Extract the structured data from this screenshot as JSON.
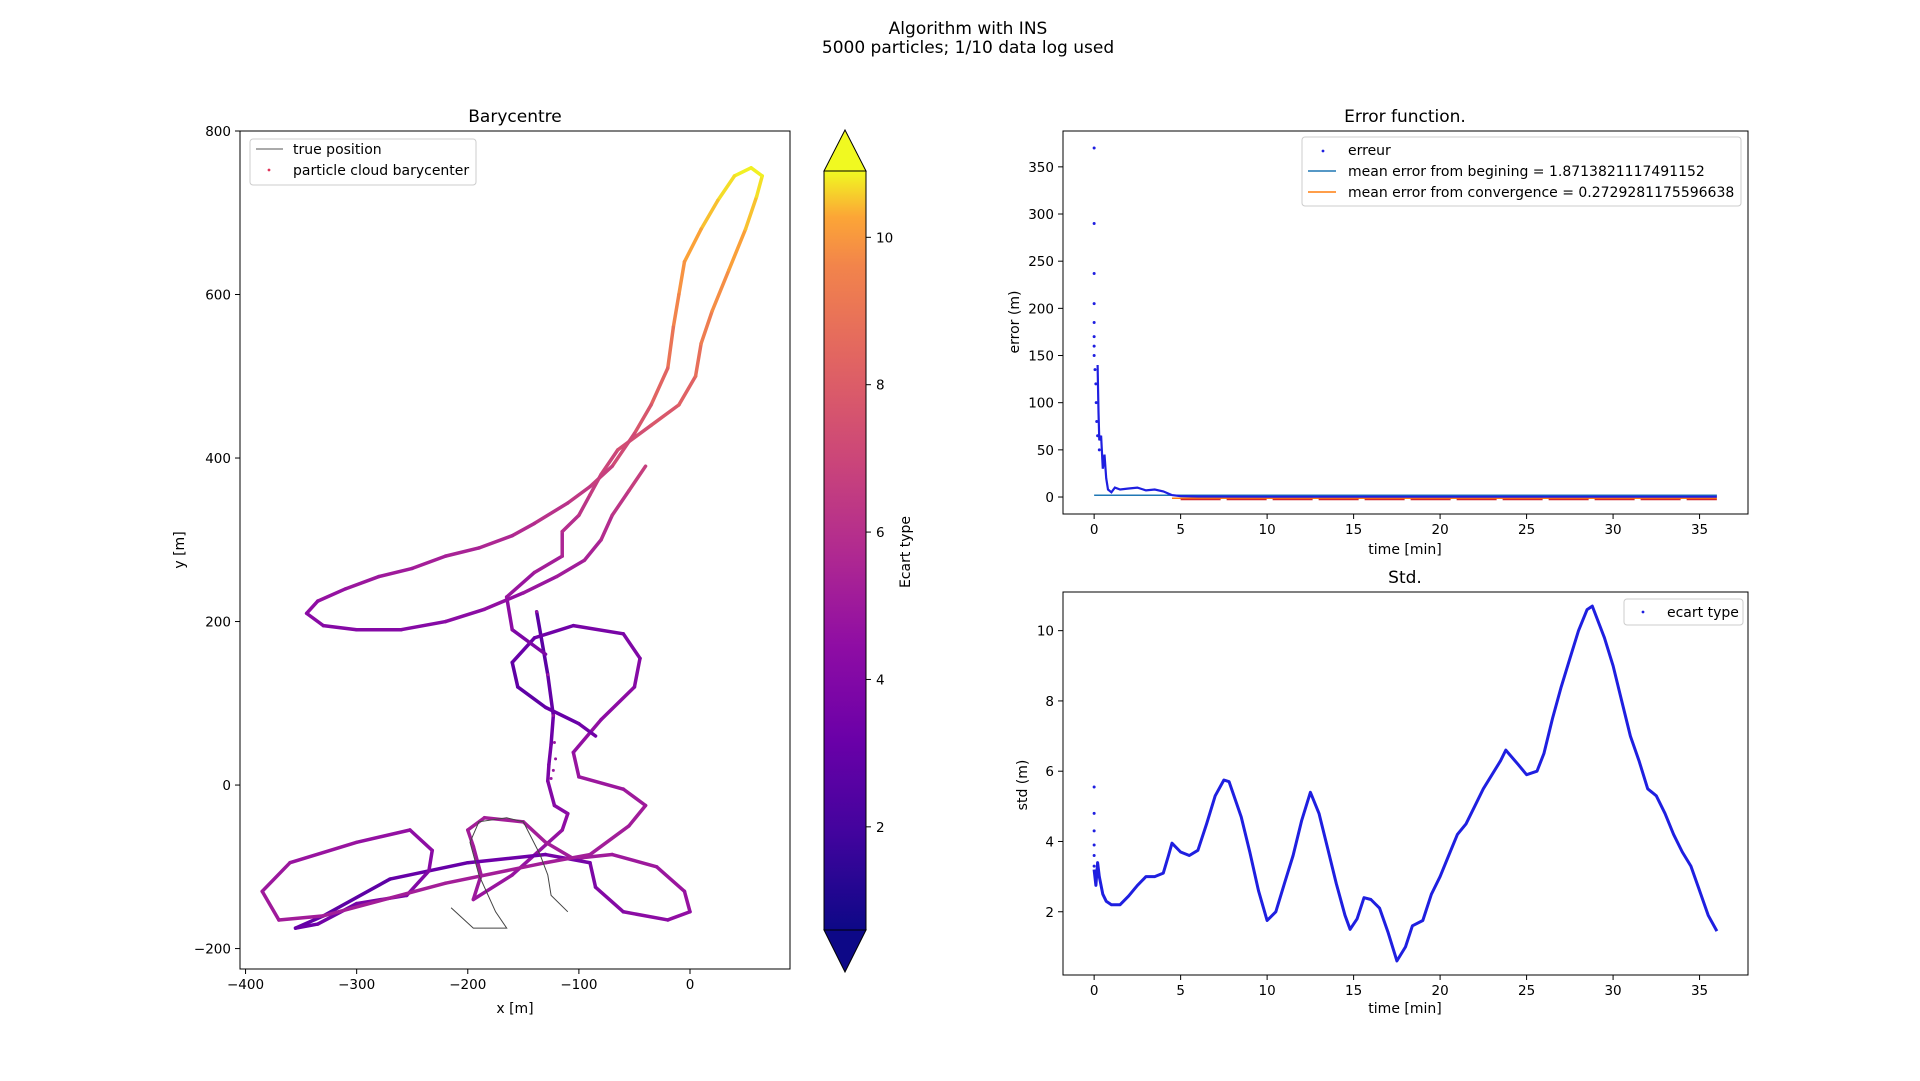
{
  "figure": {
    "suptitle_line1": "Algorithm with INS",
    "suptitle_line2": "5000 particles; 1/10 data log used"
  },
  "chart_data": [
    {
      "id": "barycentre",
      "type": "line",
      "title": "Barycentre",
      "xlabel": "x [m]",
      "ylabel": "y [m]",
      "xlim": [
        -405,
        90
      ],
      "ylim": [
        -225,
        800
      ],
      "xticks": [
        -400,
        -300,
        -200,
        -100,
        0
      ],
      "xtick_labels": [
        "−400",
        "−300",
        "−200",
        "−100",
        "0"
      ],
      "yticks": [
        -200,
        0,
        200,
        400,
        600,
        800
      ],
      "ytick_labels": [
        "−200",
        "0",
        "200",
        "400",
        "600",
        "800"
      ],
      "grid": false,
      "legend_position": "upper-left",
      "legend": [
        {
          "label": "true position",
          "marker": "line",
          "color": "#555555"
        },
        {
          "label": "particle cloud barycenter",
          "marker": "dot",
          "color": "#e0345a"
        }
      ],
      "colorbar": {
        "label": "Ecart type",
        "colormap": "plasma",
        "range": [
          0.6,
          10.9
        ],
        "ticks": [
          2,
          4,
          6,
          8,
          10
        ],
        "extend": "both"
      },
      "true_position": [
        [
          -110,
          -155
        ],
        [
          -125,
          -135
        ],
        [
          -128,
          -110
        ],
        [
          -135,
          -85
        ],
        [
          -150,
          -45
        ],
        [
          -165,
          -40
        ],
        [
          -190,
          -45
        ],
        [
          -198,
          -70
        ],
        [
          -190,
          -110
        ],
        [
          -175,
          -155
        ],
        [
          -165,
          -175
        ],
        [
          -195,
          -175
        ],
        [
          -215,
          -150
        ]
      ],
      "barycenter_path": [
        [
          -138,
          212
        ],
        [
          -128,
          135
        ],
        [
          -123,
          85
        ],
        [
          -125,
          50
        ],
        [
          -127,
          25
        ],
        [
          -128,
          5
        ],
        [
          -122,
          -25
        ],
        [
          -110,
          -35
        ],
        [
          -115,
          -55
        ],
        [
          -160,
          -110
        ],
        [
          -195,
          -140
        ],
        [
          -188,
          -110
        ],
        [
          -195,
          -75
        ],
        [
          -200,
          -55
        ],
        [
          -185,
          -40
        ],
        [
          -150,
          -45
        ],
        [
          -130,
          -70
        ],
        [
          -105,
          -90
        ],
        [
          -70,
          -85
        ],
        [
          -30,
          -100
        ],
        [
          -5,
          -130
        ],
        [
          0,
          -155
        ],
        [
          -20,
          -165
        ],
        [
          -60,
          -155
        ],
        [
          -85,
          -125
        ],
        [
          -90,
          -95
        ],
        [
          -130,
          -85
        ],
        [
          -200,
          -95
        ],
        [
          -270,
          -115
        ],
        [
          -330,
          -160
        ],
        [
          -355,
          -175
        ],
        [
          -335,
          -170
        ],
        [
          -300,
          -145
        ],
        [
          -255,
          -135
        ],
        [
          -235,
          -105
        ],
        [
          -232,
          -80
        ],
        [
          -252,
          -55
        ],
        [
          -300,
          -70
        ],
        [
          -360,
          -95
        ],
        [
          -385,
          -130
        ],
        [
          -370,
          -165
        ],
        [
          -330,
          -160
        ],
        [
          -220,
          -120
        ],
        [
          -130,
          -95
        ],
        [
          -90,
          -85
        ],
        [
          -55,
          -50
        ],
        [
          -40,
          -25
        ],
        [
          -60,
          -5
        ],
        [
          -100,
          10
        ],
        [
          -105,
          40
        ],
        [
          -80,
          80
        ],
        [
          -50,
          120
        ],
        [
          -45,
          155
        ],
        [
          -60,
          185
        ],
        [
          -105,
          195
        ],
        [
          -140,
          180
        ],
        [
          -160,
          150
        ],
        [
          -155,
          120
        ],
        [
          -130,
          95
        ],
        [
          -100,
          75
        ],
        [
          -85,
          60
        ]
      ],
      "barycenter_path_2": [
        [
          -130,
          160
        ],
        [
          -160,
          190
        ],
        [
          -165,
          230
        ],
        [
          -140,
          260
        ],
        [
          -115,
          280
        ],
        [
          -115,
          310
        ],
        [
          -100,
          330
        ],
        [
          -90,
          355
        ],
        [
          -80,
          380
        ],
        [
          -65,
          410
        ],
        [
          -35,
          440
        ],
        [
          -10,
          465
        ],
        [
          5,
          500
        ],
        [
          10,
          540
        ],
        [
          20,
          580
        ],
        [
          35,
          630
        ],
        [
          50,
          680
        ],
        [
          60,
          720
        ],
        [
          65,
          745
        ],
        [
          55,
          755
        ],
        [
          40,
          745
        ],
        [
          25,
          715
        ],
        [
          10,
          680
        ],
        [
          -5,
          640
        ],
        [
          -10,
          600
        ],
        [
          -15,
          560
        ],
        [
          -20,
          510
        ],
        [
          -35,
          465
        ],
        [
          -50,
          430
        ],
        [
          -70,
          390
        ],
        [
          -90,
          365
        ],
        [
          -110,
          345
        ],
        [
          -140,
          320
        ],
        [
          -160,
          305
        ],
        [
          -190,
          290
        ],
        [
          -220,
          280
        ],
        [
          -250,
          265
        ],
        [
          -280,
          255
        ],
        [
          -310,
          240
        ],
        [
          -335,
          225
        ],
        [
          -345,
          210
        ],
        [
          -330,
          195
        ],
        [
          -300,
          190
        ],
        [
          -260,
          190
        ],
        [
          -220,
          200
        ],
        [
          -185,
          215
        ],
        [
          -150,
          235
        ],
        [
          -120,
          255
        ],
        [
          -95,
          275
        ],
        [
          -80,
          300
        ],
        [
          -70,
          330
        ],
        [
          -55,
          360
        ],
        [
          -40,
          390
        ]
      ],
      "scatter_points": [
        [
          -138,
          212
        ],
        [
          -128,
          135
        ],
        [
          -123,
          85
        ],
        [
          -122,
          52
        ],
        [
          -121,
          32
        ],
        [
          -123,
          18
        ],
        [
          -125,
          8
        ]
      ]
    },
    {
      "id": "error",
      "type": "scatter",
      "title": "Error function.",
      "xlabel": "time [min]",
      "ylabel": "error (m)",
      "xlim": [
        -1.8,
        37.8
      ],
      "ylim": [
        -18,
        388
      ],
      "xticks": [
        0,
        5,
        10,
        15,
        20,
        25,
        30,
        35
      ],
      "yticks": [
        0,
        50,
        100,
        150,
        200,
        250,
        300,
        350
      ],
      "grid": false,
      "legend_position": "upper-right",
      "legend": [
        {
          "label": "erreur",
          "marker": "dot",
          "color": "#1f1fe0"
        },
        {
          "label": "mean error from begining = 1.8713821117491152",
          "marker": "line",
          "color": "#1f77b4"
        },
        {
          "label": "mean error from convergence = 0.2729281175596638",
          "marker": "line",
          "color": "#ff7f0e"
        }
      ],
      "scatter_points": [
        [
          0,
          370
        ],
        [
          0,
          290
        ],
        [
          0,
          237
        ],
        [
          0,
          205
        ],
        [
          0,
          185
        ],
        [
          0,
          170
        ],
        [
          0,
          160
        ],
        [
          0,
          150
        ],
        [
          0.05,
          135
        ],
        [
          0.1,
          120
        ],
        [
          0.12,
          100
        ],
        [
          0.15,
          80
        ],
        [
          0.2,
          65
        ],
        [
          0.3,
          50
        ]
      ],
      "error_trace": [
        [
          0.2,
          140
        ],
        [
          0.25,
          90
        ],
        [
          0.3,
          60
        ],
        [
          0.4,
          65
        ],
        [
          0.5,
          30
        ],
        [
          0.6,
          45
        ],
        [
          0.7,
          20
        ],
        [
          0.8,
          8
        ],
        [
          1,
          5
        ],
        [
          1.2,
          10
        ],
        [
          1.5,
          8
        ],
        [
          2,
          9
        ],
        [
          2.5,
          10
        ],
        [
          3,
          7
        ],
        [
          3.5,
          8
        ],
        [
          4,
          6
        ],
        [
          4.5,
          2
        ],
        [
          5,
          1
        ],
        [
          6,
          0.5
        ],
        [
          10,
          0.3
        ],
        [
          20,
          0.3
        ],
        [
          30,
          0.3
        ],
        [
          36,
          0.3
        ]
      ],
      "mean_begin": {
        "value": 1.8713821117491152,
        "x_range": [
          0,
          36
        ]
      },
      "mean_convergence": {
        "value": 0.2729281175596638,
        "x_range": [
          4.5,
          36
        ]
      }
    },
    {
      "id": "std",
      "type": "scatter",
      "title": "Std.",
      "xlabel": "time [min]",
      "ylabel": "std (m)",
      "xlim": [
        -1.8,
        37.8
      ],
      "ylim": [
        0.2,
        11.1
      ],
      "xticks": [
        0,
        5,
        10,
        15,
        20,
        25,
        30,
        35
      ],
      "yticks": [
        2,
        4,
        6,
        8,
        10
      ],
      "grid": false,
      "legend_position": "upper-right",
      "legend": [
        {
          "label": "ecart type",
          "marker": "dot",
          "color": "#1f1fe0"
        }
      ],
      "scatter_points": [
        [
          0,
          5.55
        ],
        [
          0,
          4.8
        ],
        [
          0,
          4.3
        ],
        [
          0,
          3.9
        ],
        [
          0,
          3.6
        ],
        [
          0,
          3.3
        ]
      ],
      "series": [
        {
          "name": "ecart type",
          "color": "#1f1fe0",
          "points": [
            [
              0,
              3.2
            ],
            [
              0.1,
              2.75
            ],
            [
              0.2,
              3.4
            ],
            [
              0.3,
              3.0
            ],
            [
              0.5,
              2.5
            ],
            [
              0.7,
              2.3
            ],
            [
              1.0,
              2.2
            ],
            [
              1.5,
              2.2
            ],
            [
              2.0,
              2.45
            ],
            [
              2.5,
              2.75
            ],
            [
              3.0,
              3.0
            ],
            [
              3.5,
              3.0
            ],
            [
              4.0,
              3.1
            ],
            [
              4.3,
              3.6
            ],
            [
              4.5,
              3.95
            ],
            [
              5,
              3.7
            ],
            [
              5.5,
              3.6
            ],
            [
              6,
              3.75
            ],
            [
              6.5,
              4.5
            ],
            [
              7,
              5.3
            ],
            [
              7.5,
              5.75
            ],
            [
              7.8,
              5.7
            ],
            [
              8.5,
              4.7
            ],
            [
              9,
              3.7
            ],
            [
              9.5,
              2.6
            ],
            [
              10,
              1.75
            ],
            [
              10.5,
              2.0
            ],
            [
              11,
              2.8
            ],
            [
              11.5,
              3.6
            ],
            [
              12,
              4.6
            ],
            [
              12.5,
              5.4
            ],
            [
              13,
              4.8
            ],
            [
              13.5,
              3.8
            ],
            [
              14,
              2.8
            ],
            [
              14.5,
              1.9
            ],
            [
              14.8,
              1.5
            ],
            [
              15.2,
              1.8
            ],
            [
              15.6,
              2.4
            ],
            [
              16,
              2.35
            ],
            [
              16.5,
              2.1
            ],
            [
              17,
              1.4
            ],
            [
              17.5,
              0.6
            ],
            [
              18,
              1.0
            ],
            [
              18.4,
              1.6
            ],
            [
              19,
              1.75
            ],
            [
              19.5,
              2.5
            ],
            [
              20,
              3.0
            ],
            [
              20.5,
              3.6
            ],
            [
              21,
              4.2
            ],
            [
              21.5,
              4.5
            ],
            [
              22,
              5.0
            ],
            [
              22.5,
              5.5
            ],
            [
              23,
              5.9
            ],
            [
              23.5,
              6.3
            ],
            [
              23.8,
              6.6
            ],
            [
              24.5,
              6.2
            ],
            [
              25,
              5.9
            ],
            [
              25.6,
              6.0
            ],
            [
              26,
              6.5
            ],
            [
              26.5,
              7.5
            ],
            [
              27,
              8.4
            ],
            [
              27.5,
              9.2
            ],
            [
              28,
              10.0
            ],
            [
              28.5,
              10.6
            ],
            [
              28.8,
              10.7
            ],
            [
              29.5,
              9.8
            ],
            [
              30,
              9.0
            ],
            [
              30.5,
              8.0
            ],
            [
              31,
              7.0
            ],
            [
              31.5,
              6.3
            ],
            [
              32,
              5.5
            ],
            [
              32.5,
              5.3
            ],
            [
              33,
              4.8
            ],
            [
              33.5,
              4.2
            ],
            [
              34,
              3.7
            ],
            [
              34.5,
              3.3
            ],
            [
              35,
              2.6
            ],
            [
              35.5,
              1.9
            ],
            [
              36,
              1.45
            ]
          ]
        }
      ]
    }
  ]
}
